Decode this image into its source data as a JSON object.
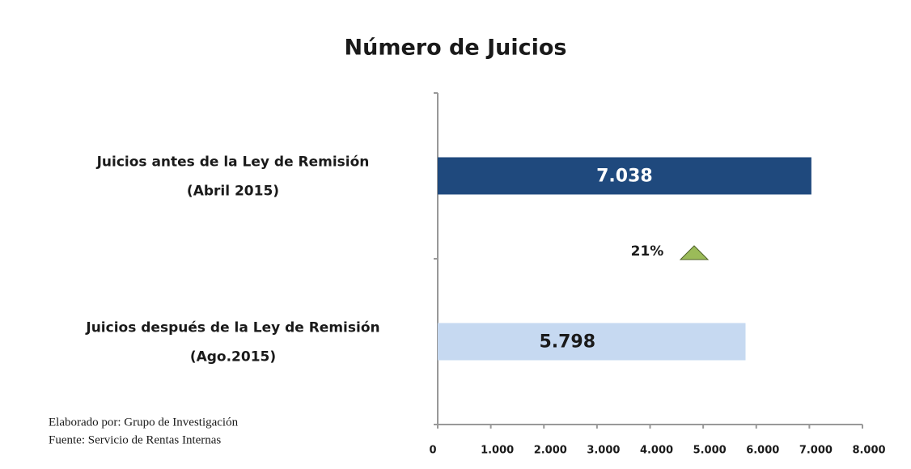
{
  "chart_data": {
    "type": "bar",
    "orientation": "horizontal",
    "title": "Número de Juicios",
    "categories": [
      [
        "Juicios antes de la Ley de Remisión",
        "(Abril 2015)"
      ],
      [
        "Juicios después de la Ley de Remisión",
        "(Ago.2015)"
      ]
    ],
    "values": [
      7038,
      5798
    ],
    "value_labels": [
      "7.038",
      "5.798"
    ],
    "colors": [
      "#1f497d",
      "#c6d9f1"
    ],
    "xlim": [
      0,
      8000
    ],
    "xticks": [
      0,
      {
        "value": 1000,
        "label": "1.000"
      },
      {
        "value": 2000,
        "label": "2.000"
      },
      {
        "value": 3000,
        "label": "3.000"
      },
      {
        "value": 4000,
        "label": "4.000"
      },
      {
        "value": 5000,
        "label": "5.000"
      },
      {
        "value": 6000,
        "label": "6.000"
      },
      {
        "value": 7000,
        "label": "7.000"
      },
      {
        "value": 8000,
        "label": "8.000"
      }
    ],
    "annotation": "21%",
    "footnotes": [
      "Elaborado por: Grupo de Investigación",
      "Fuente: Servicio de Rentas Internas"
    ]
  }
}
